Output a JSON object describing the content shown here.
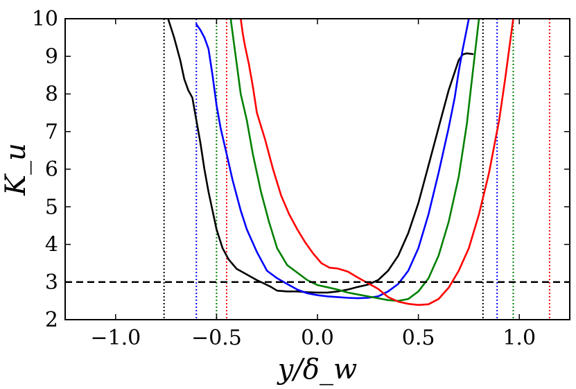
{
  "chart_data": {
    "type": "line",
    "title": "",
    "xlabel": "y/δ_w",
    "ylabel": "K_u",
    "xlim": [
      -1.25,
      1.25
    ],
    "ylim": [
      2,
      10
    ],
    "xticks": [
      -1.0,
      -0.5,
      0.0,
      0.5,
      1.0
    ],
    "xtick_labels": [
      "−1.0",
      "−0.5",
      "0.0",
      "0.5",
      "1.0"
    ],
    "yticks": [
      2,
      3,
      4,
      5,
      6,
      7,
      8,
      9,
      10
    ],
    "ytick_labels": [
      "2",
      "3",
      "4",
      "5",
      "6",
      "7",
      "8",
      "9",
      "10"
    ],
    "grid": false,
    "reference_line": {
      "y": 3,
      "color": "#000000",
      "style": "dashed"
    },
    "series": [
      {
        "name": "black",
        "color": "#000000",
        "x": [
          -0.74,
          -0.71,
          -0.68,
          -0.66,
          -0.64,
          -0.62,
          -0.6,
          -0.58,
          -0.56,
          -0.54,
          -0.52,
          -0.5,
          -0.47,
          -0.44,
          -0.4,
          -0.35,
          -0.3,
          -0.26,
          -0.23,
          -0.2,
          -0.15,
          -0.1,
          -0.05,
          0.0,
          0.05,
          0.1,
          0.15,
          0.2,
          0.25,
          0.3,
          0.35,
          0.4,
          0.45,
          0.5,
          0.55,
          0.6,
          0.65,
          0.7,
          0.72,
          0.74,
          0.77
        ],
        "y": [
          10.0,
          9.5,
          8.9,
          8.4,
          8.1,
          7.9,
          7.3,
          6.7,
          6.0,
          5.4,
          4.9,
          4.4,
          3.9,
          3.6,
          3.35,
          3.2,
          3.05,
          2.95,
          2.87,
          2.77,
          2.75,
          2.75,
          2.73,
          2.72,
          2.72,
          2.75,
          2.8,
          2.87,
          2.93,
          3.05,
          3.3,
          3.7,
          4.3,
          5.1,
          6.1,
          7.1,
          8.1,
          8.9,
          9.05,
          9.08,
          9.06
        ]
      },
      {
        "name": "blue",
        "color": "#0000ff",
        "x": [
          -0.6,
          -0.58,
          -0.56,
          -0.54,
          -0.52,
          -0.5,
          -0.48,
          -0.45,
          -0.42,
          -0.38,
          -0.35,
          -0.3,
          -0.25,
          -0.2,
          -0.15,
          -0.1,
          -0.05,
          0.0,
          0.05,
          0.1,
          0.15,
          0.2,
          0.25,
          0.3,
          0.35,
          0.4,
          0.45,
          0.5,
          0.55,
          0.6,
          0.65,
          0.68,
          0.7,
          0.72,
          0.75
        ],
        "y": [
          9.85,
          9.7,
          9.5,
          9.2,
          8.5,
          7.7,
          7.1,
          6.4,
          5.7,
          4.9,
          4.4,
          3.8,
          3.3,
          3.1,
          2.95,
          2.8,
          2.7,
          2.65,
          2.62,
          2.6,
          2.58,
          2.57,
          2.58,
          2.62,
          2.75,
          2.95,
          3.3,
          3.9,
          4.8,
          5.9,
          7.1,
          7.9,
          8.6,
          9.2,
          10.0
        ]
      },
      {
        "name": "green",
        "color": "#008000",
        "x": [
          -0.43,
          -0.42,
          -0.41,
          -0.4,
          -0.38,
          -0.35,
          -0.32,
          -0.28,
          -0.24,
          -0.2,
          -0.15,
          -0.1,
          -0.05,
          0.0,
          0.05,
          0.1,
          0.15,
          0.2,
          0.25,
          0.3,
          0.35,
          0.4,
          0.45,
          0.5,
          0.55,
          0.6,
          0.65,
          0.7,
          0.74,
          0.77,
          0.8
        ],
        "y": [
          10.0,
          9.6,
          9.2,
          8.8,
          8.0,
          7.3,
          6.4,
          5.4,
          4.6,
          3.9,
          3.45,
          3.25,
          3.05,
          2.92,
          2.86,
          2.8,
          2.72,
          2.67,
          2.62,
          2.57,
          2.52,
          2.5,
          2.55,
          2.75,
          3.1,
          3.7,
          4.6,
          5.8,
          7.2,
          8.6,
          10.0
        ]
      },
      {
        "name": "red",
        "color": "#ff0000",
        "x": [
          -0.38,
          -0.37,
          -0.36,
          -0.34,
          -0.32,
          -0.3,
          -0.26,
          -0.22,
          -0.18,
          -0.14,
          -0.1,
          -0.06,
          -0.02,
          0.02,
          0.06,
          0.1,
          0.15,
          0.2,
          0.25,
          0.3,
          0.35,
          0.4,
          0.45,
          0.5,
          0.55,
          0.6,
          0.65,
          0.7,
          0.75,
          0.8,
          0.85,
          0.9,
          0.93,
          0.95,
          0.97
        ],
        "y": [
          10.0,
          9.6,
          9.3,
          8.8,
          8.2,
          7.5,
          6.8,
          6.0,
          5.3,
          4.8,
          4.4,
          4.05,
          3.75,
          3.5,
          3.38,
          3.36,
          3.28,
          3.12,
          2.97,
          2.82,
          2.6,
          2.48,
          2.42,
          2.39,
          2.41,
          2.55,
          2.85,
          3.3,
          3.9,
          4.8,
          5.9,
          7.3,
          8.4,
          9.2,
          10.0
        ]
      }
    ],
    "vertical_lines": [
      {
        "x": -0.76,
        "color": "#000000"
      },
      {
        "x": -0.6,
        "color": "#0000ff"
      },
      {
        "x": -0.5,
        "color": "#008000"
      },
      {
        "x": -0.45,
        "color": "#ff0000"
      },
      {
        "x": 0.82,
        "color": "#000000"
      },
      {
        "x": 0.89,
        "color": "#0000ff"
      },
      {
        "x": 0.97,
        "color": "#008000"
      },
      {
        "x": 1.15,
        "color": "#ff0000"
      }
    ]
  }
}
